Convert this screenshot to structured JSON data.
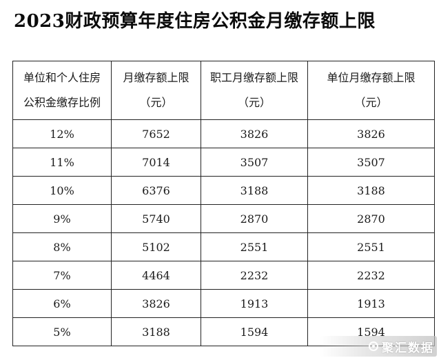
{
  "title": "2023财政预算年度住房公积金月缴存额上限",
  "table": {
    "headers": [
      {
        "line1": "单位和个人住房",
        "line2": "公积金缴存比例"
      },
      {
        "line1": "月缴存额上限",
        "line2": "（元）"
      },
      {
        "line1": "职工月缴存额上限",
        "line2": "（元）"
      },
      {
        "line1": "单位月缴存额上限",
        "line2": "（元）"
      }
    ],
    "rows": [
      [
        "12%",
        "7652",
        "3826",
        "3826"
      ],
      [
        "11%",
        "7014",
        "3507",
        "3507"
      ],
      [
        "10%",
        "6376",
        "3188",
        "3188"
      ],
      [
        "9%",
        "5740",
        "2870",
        "2870"
      ],
      [
        "8%",
        "5102",
        "2551",
        "2551"
      ],
      [
        "7%",
        "4464",
        "2232",
        "2232"
      ],
      [
        "6%",
        "3826",
        "1913",
        "1913"
      ],
      [
        "5%",
        "3188",
        "1594",
        "1594"
      ]
    ]
  },
  "watermark": {
    "text": "聚汇数据",
    "icon": "watermark-logo-icon"
  }
}
